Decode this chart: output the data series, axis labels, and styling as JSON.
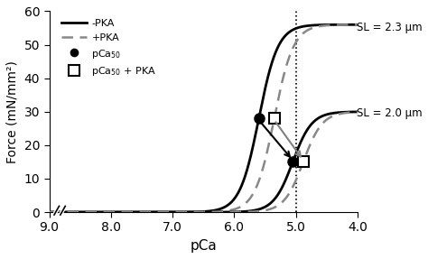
{
  "title": "",
  "xlabel": "pCa",
  "ylabel": "Force (mN/mm²)",
  "xlim": [
    9.0,
    4.0
  ],
  "ylim": [
    0,
    60
  ],
  "yticks": [
    0,
    10,
    20,
    30,
    40,
    50,
    60
  ],
  "xticks": [
    9.0,
    8.0,
    7.0,
    6.0,
    5.0,
    4.0
  ],
  "dotted_vline": 5.0,
  "sl23": {
    "fmax_solid": 56,
    "fmax_dashed": 56,
    "pca50_solid": 5.6,
    "pca50_dashed": 5.35,
    "hill_solid": 2.8,
    "hill_dashed": 2.8
  },
  "sl20": {
    "fmax_solid": 30,
    "fmax_dashed": 30,
    "pca50_solid": 5.05,
    "pca50_dashed": 4.88,
    "hill_solid": 2.8,
    "hill_dashed": 2.8
  },
  "color_solid": "#000000",
  "color_dashed": "#888888",
  "annotation_sl23": "SL = 2.3 μm",
  "annotation_sl20": "SL = 2.0 μm",
  "break_x1": 8.88,
  "break_x2": 8.78
}
